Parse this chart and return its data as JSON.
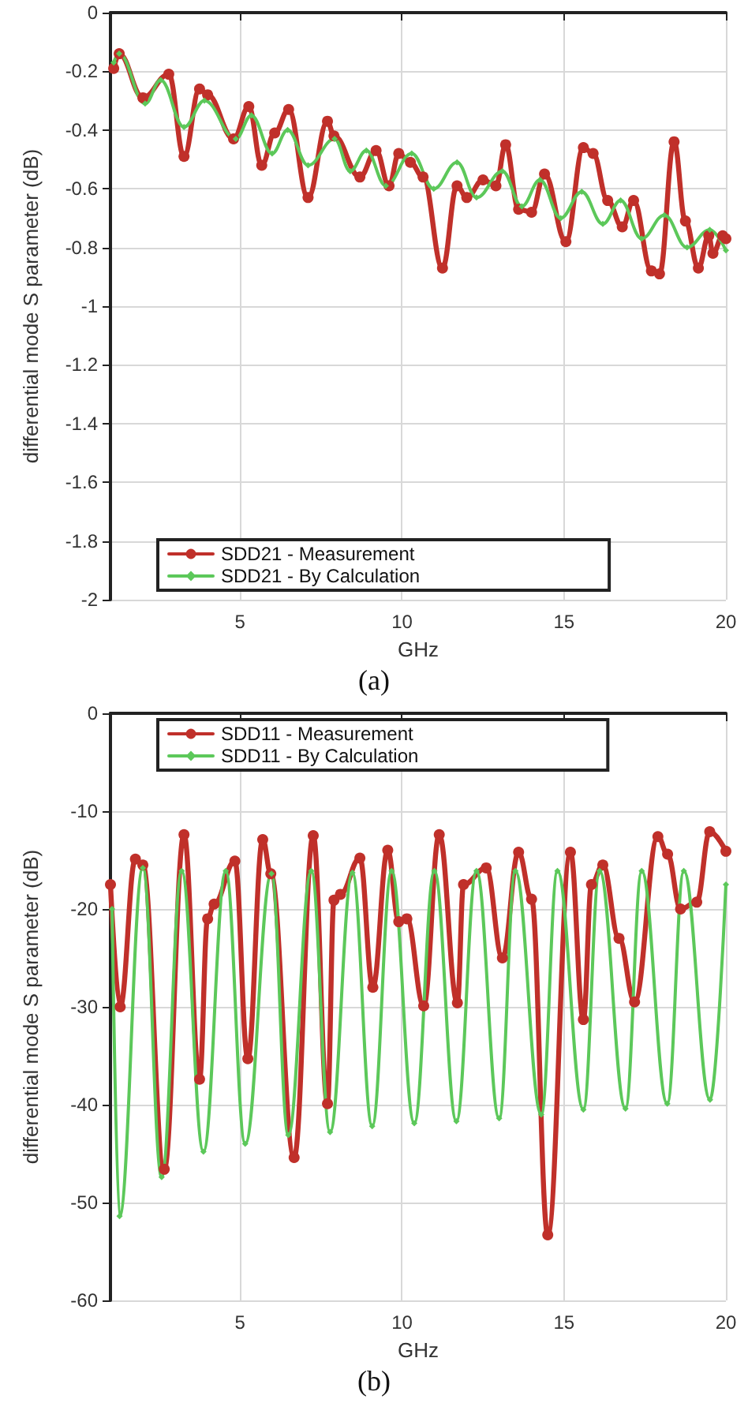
{
  "chart_data": [
    {
      "type": "line",
      "xlabel": "GHz",
      "ylabel": "differential mode S parameter (dB)",
      "annotations": [
        "(a)"
      ],
      "xlim": [
        1,
        20
      ],
      "xticks": [
        5,
        10,
        15,
        20
      ],
      "ylim": [
        -2,
        0
      ],
      "yticks": [
        -2,
        -1.8,
        -1.6,
        -1.4,
        -1.2,
        -1,
        -0.8,
        -0.6,
        -0.4,
        -0.2,
        0
      ],
      "grid": true,
      "legend": "bottom",
      "line_style": "solid",
      "series": [
        {
          "name": "SDD21 - Measurement",
          "color": "#c0302a",
          "marker": "circle",
          "x": [
            1.1,
            1.27,
            2.0,
            2.8,
            3.27,
            3.75,
            4.0,
            4.8,
            5.27,
            5.67,
            6.07,
            6.5,
            7.1,
            7.7,
            7.9,
            8.7,
            9.2,
            9.6,
            9.9,
            10.26,
            10.65,
            11.25,
            11.7,
            12.0,
            12.5,
            12.9,
            13.2,
            13.6,
            14.0,
            14.4,
            15.06,
            15.6,
            15.9,
            16.35,
            16.8,
            17.15,
            17.7,
            17.95,
            18.4,
            18.75,
            19.15,
            19.47,
            19.6,
            19.9,
            20
          ],
          "values": [
            -0.19,
            -0.14,
            -0.29,
            -0.21,
            -0.49,
            -0.26,
            -0.28,
            -0.43,
            -0.32,
            -0.52,
            -0.41,
            -0.33,
            -0.63,
            -0.37,
            -0.42,
            -0.56,
            -0.47,
            -0.59,
            -0.48,
            -0.51,
            -0.56,
            -0.87,
            -0.59,
            -0.63,
            -0.57,
            -0.59,
            -0.45,
            -0.67,
            -0.68,
            -0.55,
            -0.78,
            -0.46,
            -0.48,
            -0.64,
            -0.73,
            -0.64,
            -0.88,
            -0.89,
            -0.44,
            -0.71,
            -0.87,
            -0.76,
            -0.82,
            -0.76,
            -0.77
          ]
        },
        {
          "name": "SDD21 - By Calculation",
          "color": "#5cc85a",
          "marker": "diamond",
          "x": [
            1.1,
            1.27,
            2.07,
            2.55,
            3.27,
            3.9,
            4.87,
            5.35,
            5.99,
            6.47,
            7.1,
            7.92,
            8.4,
            8.9,
            9.5,
            10.3,
            10.98,
            11.7,
            12.3,
            13.1,
            13.7,
            14.26,
            14.9,
            15.55,
            16.2,
            16.75,
            17.4,
            18.1,
            18.8,
            19.5,
            20
          ],
          "values": [
            -0.17,
            -0.14,
            -0.31,
            -0.23,
            -0.39,
            -0.3,
            -0.43,
            -0.35,
            -0.48,
            -0.4,
            -0.52,
            -0.43,
            -0.54,
            -0.47,
            -0.59,
            -0.48,
            -0.6,
            -0.51,
            -0.63,
            -0.54,
            -0.66,
            -0.57,
            -0.7,
            -0.61,
            -0.72,
            -0.64,
            -0.77,
            -0.69,
            -0.8,
            -0.74,
            -0.81
          ]
        }
      ]
    },
    {
      "type": "line",
      "xlabel": "GHz",
      "ylabel": "differential mode S parameter (dB)",
      "annotations": [
        "(b)"
      ],
      "xlim": [
        1,
        20
      ],
      "xticks": [
        5,
        10,
        15,
        20
      ],
      "ylim": [
        -60,
        0
      ],
      "yticks": [
        -60,
        -50,
        -40,
        -30,
        -20,
        -10,
        0
      ],
      "grid": true,
      "legend": "top",
      "line_style": "solid",
      "series": [
        {
          "name": "SDD11 - Measurement",
          "color": "#c0302a",
          "marker": "circle",
          "x": [
            1.0,
            1.3,
            1.77,
            2.0,
            2.66,
            3.27,
            3.75,
            4.0,
            4.2,
            4.84,
            5.24,
            5.7,
            5.95,
            6.67,
            7.26,
            7.7,
            7.9,
            8.1,
            8.7,
            9.1,
            9.56,
            9.9,
            10.15,
            10.67,
            11.15,
            11.71,
            11.9,
            12.6,
            13.1,
            13.6,
            14.0,
            14.5,
            15.2,
            15.6,
            15.85,
            16.2,
            16.7,
            17.18,
            17.9,
            18.2,
            18.6,
            19.1,
            19.5,
            20
          ],
          "values": [
            -17.5,
            -30,
            -14.9,
            -15.5,
            -46.6,
            -12.4,
            -37.4,
            -21,
            -19.5,
            -15.1,
            -35.3,
            -12.9,
            -16.4,
            -45.4,
            -12.5,
            -39.9,
            -19.1,
            -18.5,
            -14.8,
            -28,
            -14,
            -21.3,
            -21,
            -29.9,
            -12.4,
            -29.6,
            -17.5,
            -15.8,
            -25,
            -14.2,
            -19,
            -53.3,
            -14.2,
            -31.3,
            -17.5,
            -15.5,
            -23,
            -29.5,
            -12.6,
            -14.4,
            -20,
            -19.3,
            -12.1,
            -14.1
          ]
        },
        {
          "name": "SDD11 - By Calculation",
          "color": "#5cc85a",
          "marker": "diamond",
          "x": [
            1.05,
            1.28,
            2.0,
            2.58,
            3.2,
            3.87,
            4.56,
            5.16,
            5.97,
            6.49,
            7.2,
            7.78,
            8.47,
            9.08,
            9.68,
            10.38,
            11.0,
            11.68,
            12.3,
            13.0,
            13.5,
            14.3,
            14.8,
            15.6,
            16.1,
            16.9,
            17.4,
            18.19,
            18.7,
            19.51,
            20
          ],
          "values": [
            -20,
            -51.4,
            -15.8,
            -47.4,
            -16.1,
            -44.8,
            -16.1,
            -44,
            -16.4,
            -43.1,
            -16.1,
            -42.8,
            -16.3,
            -42.2,
            -16.1,
            -41.9,
            -16.1,
            -41.7,
            -16.1,
            -41.4,
            -16.1,
            -41,
            -16.1,
            -40.5,
            -16.1,
            -40.4,
            -16.1,
            -39.9,
            -16.1,
            -39.5,
            -17.5
          ]
        }
      ]
    }
  ]
}
